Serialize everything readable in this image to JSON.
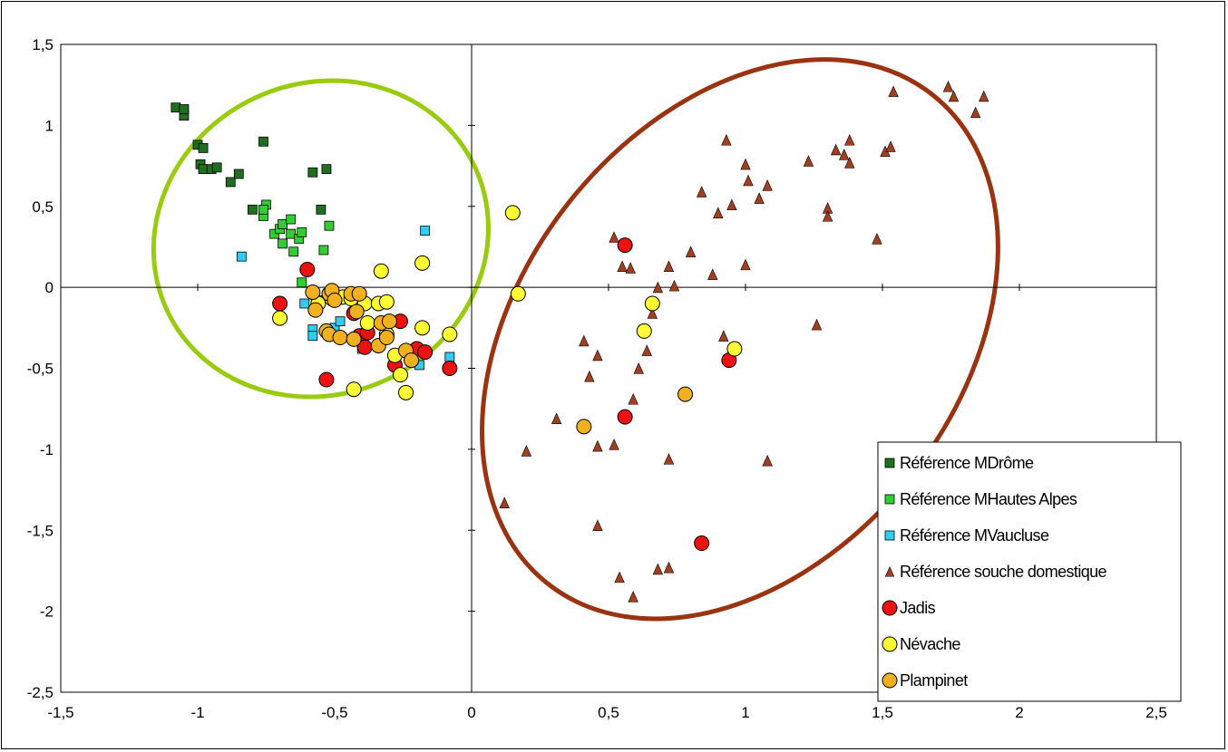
{
  "chart_data": {
    "type": "scatter",
    "title": "",
    "xlabel": "",
    "ylabel": "",
    "xlim": [
      -1.5,
      2.5
    ],
    "ylim": [
      -2.5,
      1.5
    ],
    "x_ticks": [
      "-1,5",
      "-1",
      "-0,5",
      "0",
      "0,5",
      "1",
      "1,5",
      "2",
      "2,5"
    ],
    "y_ticks": [
      "1,5",
      "1",
      "0,5",
      "0",
      "-0,5",
      "-1",
      "-1,5",
      "-2",
      "-2,5"
    ],
    "grid": false,
    "legend_position": "bottom-right",
    "series": [
      {
        "name": "Référence M Drôme",
        "marker": "square",
        "color": "#1f6f1f",
        "points": [
          [
            -1.08,
            1.11
          ],
          [
            -1.05,
            1.06
          ],
          [
            -1.05,
            1.1
          ],
          [
            -1.0,
            0.88
          ],
          [
            -0.98,
            0.86
          ],
          [
            -0.99,
            0.76
          ],
          [
            -0.98,
            0.73
          ],
          [
            -0.95,
            0.73
          ],
          [
            -0.93,
            0.74
          ],
          [
            -0.88,
            0.65
          ],
          [
            -0.85,
            0.7
          ],
          [
            -0.76,
            0.9
          ],
          [
            -0.8,
            0.48
          ],
          [
            -0.58,
            0.71
          ],
          [
            -0.53,
            0.73
          ],
          [
            -0.55,
            0.48
          ]
        ]
      },
      {
        "name": "Référence M Hautes Alpes",
        "marker": "square",
        "color": "#33cc33",
        "points": [
          [
            -0.75,
            0.51
          ],
          [
            -0.76,
            0.44
          ],
          [
            -0.76,
            0.48
          ],
          [
            -0.72,
            0.33
          ],
          [
            -0.7,
            0.36
          ],
          [
            -0.69,
            0.39
          ],
          [
            -0.69,
            0.27
          ],
          [
            -0.66,
            0.33
          ],
          [
            -0.66,
            0.42
          ],
          [
            -0.65,
            0.22
          ],
          [
            -0.63,
            0.3
          ],
          [
            -0.62,
            0.34
          ],
          [
            -0.52,
            0.38
          ],
          [
            -0.54,
            0.23
          ],
          [
            -0.62,
            0.03
          ]
        ]
      },
      {
        "name": "Référence M Vaucluse",
        "marker": "square",
        "color": "#33ccee",
        "points": [
          [
            -0.84,
            0.19
          ],
          [
            -0.61,
            -0.1
          ],
          [
            -0.56,
            -0.08
          ],
          [
            -0.58,
            -0.26
          ],
          [
            -0.58,
            -0.3
          ],
          [
            -0.5,
            -0.25
          ],
          [
            -0.48,
            -0.21
          ],
          [
            -0.4,
            -0.38
          ],
          [
            -0.19,
            -0.48
          ],
          [
            -0.17,
            0.35
          ],
          [
            -0.08,
            -0.43
          ]
        ]
      },
      {
        "name": "Référence souche domestique",
        "marker": "triangle",
        "color": "#a04020",
        "points": [
          [
            1.74,
            1.24
          ],
          [
            1.76,
            1.18
          ],
          [
            1.87,
            1.18
          ],
          [
            1.84,
            1.08
          ],
          [
            1.54,
            1.21
          ],
          [
            0.93,
            0.91
          ],
          [
            1.33,
            0.85
          ],
          [
            1.36,
            0.82
          ],
          [
            1.38,
            0.77
          ],
          [
            1.38,
            0.91
          ],
          [
            1.51,
            0.84
          ],
          [
            1.53,
            0.87
          ],
          [
            1.23,
            0.78
          ],
          [
            1.0,
            0.76
          ],
          [
            1.01,
            0.66
          ],
          [
            1.08,
            0.63
          ],
          [
            1.05,
            0.55
          ],
          [
            0.84,
            0.59
          ],
          [
            0.95,
            0.51
          ],
          [
            0.9,
            0.46
          ],
          [
            1.3,
            0.49
          ],
          [
            1.3,
            0.44
          ],
          [
            1.48,
            0.3
          ],
          [
            1.0,
            0.14
          ],
          [
            0.8,
            0.22
          ],
          [
            0.88,
            0.08
          ],
          [
            0.52,
            0.31
          ],
          [
            0.55,
            0.13
          ],
          [
            0.58,
            0.12
          ],
          [
            0.68,
            0.0
          ],
          [
            0.72,
            0.13
          ],
          [
            0.74,
            0.01
          ],
          [
            0.66,
            -0.16
          ],
          [
            0.64,
            -0.39
          ],
          [
            0.61,
            -0.5
          ],
          [
            0.59,
            -0.69
          ],
          [
            0.41,
            -0.33
          ],
          [
            0.46,
            -0.42
          ],
          [
            0.43,
            -0.55
          ],
          [
            0.92,
            -0.3
          ],
          [
            1.26,
            -0.23
          ],
          [
            0.31,
            -0.81
          ],
          [
            0.2,
            -1.01
          ],
          [
            0.46,
            -0.98
          ],
          [
            0.52,
            -0.97
          ],
          [
            0.72,
            -1.06
          ],
          [
            1.08,
            -1.07
          ],
          [
            0.12,
            -1.33
          ],
          [
            0.46,
            -1.47
          ],
          [
            0.54,
            -1.79
          ],
          [
            0.68,
            -1.74
          ],
          [
            0.72,
            -1.73
          ],
          [
            0.59,
            -1.91
          ]
        ]
      },
      {
        "name": "Jadis",
        "marker": "circle",
        "color": "#ee1111",
        "points": [
          [
            -0.6,
            0.11
          ],
          [
            -0.7,
            -0.1
          ],
          [
            -0.43,
            -0.16
          ],
          [
            -0.41,
            -0.3
          ],
          [
            -0.38,
            -0.28
          ],
          [
            -0.39,
            -0.37
          ],
          [
            -0.26,
            -0.21
          ],
          [
            -0.2,
            -0.38
          ],
          [
            -0.17,
            -0.4
          ],
          [
            -0.08,
            -0.5
          ],
          [
            -0.53,
            -0.57
          ],
          [
            -0.28,
            -0.48
          ],
          [
            0.56,
            0.26
          ],
          [
            0.56,
            -0.8
          ],
          [
            0.94,
            -0.45
          ],
          [
            0.84,
            -1.58
          ]
        ]
      },
      {
        "name": "Névache",
        "marker": "circle",
        "color": "#ffff33",
        "points": [
          [
            -0.33,
            0.1
          ],
          [
            -0.18,
            0.15
          ],
          [
            -0.7,
            -0.19
          ],
          [
            -0.56,
            -0.1
          ],
          [
            -0.51,
            -0.07
          ],
          [
            -0.47,
            -0.06
          ],
          [
            -0.44,
            -0.07
          ],
          [
            -0.39,
            -0.1
          ],
          [
            -0.34,
            -0.1
          ],
          [
            -0.31,
            -0.09
          ],
          [
            -0.38,
            -0.22
          ],
          [
            -0.31,
            -0.29
          ],
          [
            -0.18,
            -0.25
          ],
          [
            -0.08,
            -0.29
          ],
          [
            -0.28,
            -0.42
          ],
          [
            -0.26,
            -0.54
          ],
          [
            -0.43,
            -0.63
          ],
          [
            -0.24,
            -0.65
          ],
          [
            0.15,
            0.46
          ],
          [
            0.17,
            -0.04
          ],
          [
            0.66,
            -0.1
          ],
          [
            0.63,
            -0.27
          ],
          [
            0.96,
            -0.38
          ]
        ]
      },
      {
        "name": "Plampinet",
        "marker": "circle",
        "color": "#f0b020",
        "points": [
          [
            -0.58,
            -0.03
          ],
          [
            -0.52,
            -0.04
          ],
          [
            -0.51,
            -0.02
          ],
          [
            -0.44,
            -0.04
          ],
          [
            -0.41,
            -0.04
          ],
          [
            -0.57,
            -0.14
          ],
          [
            -0.5,
            -0.08
          ],
          [
            -0.42,
            -0.15
          ],
          [
            -0.53,
            -0.27
          ],
          [
            -0.52,
            -0.29
          ],
          [
            -0.48,
            -0.31
          ],
          [
            -0.43,
            -0.32
          ],
          [
            -0.33,
            -0.22
          ],
          [
            -0.34,
            -0.36
          ],
          [
            -0.3,
            -0.21
          ],
          [
            -0.31,
            -0.31
          ],
          [
            -0.24,
            -0.39
          ],
          [
            -0.22,
            -0.45
          ],
          [
            0.41,
            -0.86
          ],
          [
            0.78,
            -0.66
          ]
        ]
      }
    ],
    "ellipses": [
      {
        "color": "#99cc11",
        "cx": -0.55,
        "cy": 0.3,
        "rx": 0.62,
        "ry": 0.96,
        "rotation_deg": -25
      },
      {
        "color": "#993311",
        "cx": 0.98,
        "cy": -0.32,
        "rx": 0.8,
        "ry": 1.92,
        "rotation_deg": 38
      }
    ]
  },
  "legend": [
    {
      "label": "Référence MDrôme",
      "marker": "square",
      "color": "#1f6f1f"
    },
    {
      "label": "Référence MHautes Alpes",
      "marker": "square",
      "color": "#33cc33"
    },
    {
      "label": "Référence MVaucluse",
      "marker": "square",
      "color": "#33ccee"
    },
    {
      "label": "Référence souche domestique",
      "marker": "triangle",
      "color": "#a04020"
    },
    {
      "label": "Jadis",
      "marker": "circle",
      "color": "#ee1111"
    },
    {
      "label": "Névache",
      "marker": "circle",
      "color": "#ffff33"
    },
    {
      "label": "Plampinet",
      "marker": "circle",
      "color": "#f0b020"
    }
  ]
}
